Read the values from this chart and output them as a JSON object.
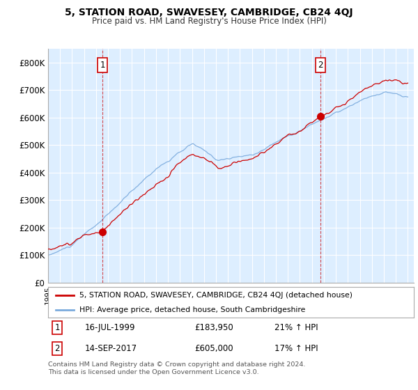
{
  "title": "5, STATION ROAD, SWAVESEY, CAMBRIDGE, CB24 4QJ",
  "subtitle": "Price paid vs. HM Land Registry's House Price Index (HPI)",
  "legend_line1": "5, STATION ROAD, SWAVESEY, CAMBRIDGE, CB24 4QJ (detached house)",
  "legend_line2": "HPI: Average price, detached house, South Cambridgeshire",
  "annotation1_date": "16-JUL-1999",
  "annotation1_price": "£183,950",
  "annotation1_hpi": "21% ↑ HPI",
  "annotation2_date": "14-SEP-2017",
  "annotation2_price": "£605,000",
  "annotation2_hpi": "17% ↑ HPI",
  "footnote1": "Contains HM Land Registry data © Crown copyright and database right 2024.",
  "footnote2": "This data is licensed under the Open Government Licence v3.0.",
  "red_color": "#cc0000",
  "blue_color": "#7aaadd",
  "bg_plot_color": "#ddeeff",
  "background_color": "#ffffff",
  "grid_color": "#ffffff",
  "ylim": [
    0,
    850000
  ],
  "yticks": [
    0,
    100000,
    200000,
    300000,
    400000,
    500000,
    600000,
    700000,
    800000
  ],
  "ytick_labels": [
    "£0",
    "£100K",
    "£200K",
    "£300K",
    "£400K",
    "£500K",
    "£600K",
    "£700K",
    "£800K"
  ],
  "marker1_x": 1999.54,
  "marker1_y": 183950,
  "marker2_x": 2017.71,
  "marker2_y": 605000,
  "xmin": 1995,
  "xmax": 2025.5
}
